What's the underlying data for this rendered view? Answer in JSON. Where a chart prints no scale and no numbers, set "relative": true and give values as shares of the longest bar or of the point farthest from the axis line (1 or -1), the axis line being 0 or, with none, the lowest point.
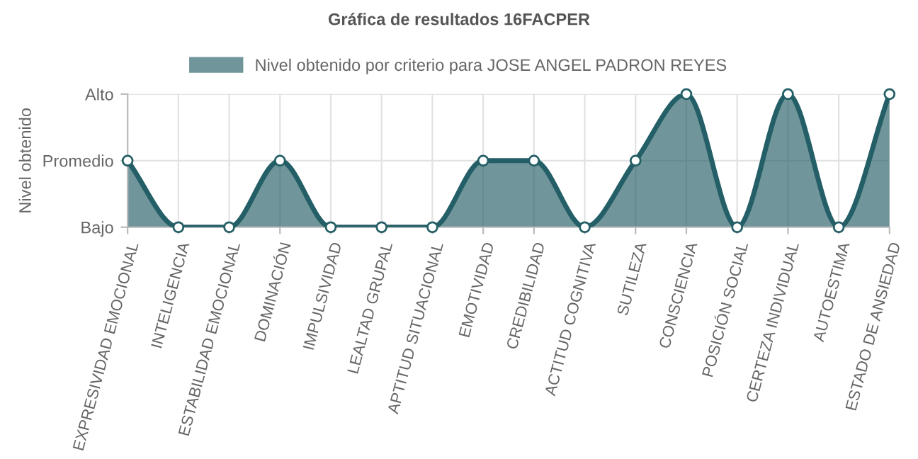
{
  "chart_data": {
    "type": "area",
    "title": "Gráfica de resultados 16FACPER",
    "ylabel": "Nivel obtenido",
    "categories": [
      "EXPRESIVIDAD EMOCIONAL",
      "INTELIGENCIA",
      "ESTABILIDAD EMOCIONAL",
      "DOMINACIÓN",
      "IMPULSIVIDAD",
      "LEALTAD GRUPAL",
      "APTITUD SITUACIONAL",
      "EMOTIVIDAD",
      "CREDIBILIDAD",
      "ACTITUD COGNITIVA",
      "SUTILEZA",
      "CONSCIENCIA",
      "POSICIÓN SOCIAL",
      "CERTEZA INDIVIDUAL",
      "AUTOESTIMA",
      "ESTADO DE ANSIEDAD"
    ],
    "series": [
      {
        "name": "Nivel obtenido por criterio para JOSE ANGEL PADRON REYES",
        "color": "#245e66",
        "values": [
          0.5,
          0,
          0,
          0.5,
          0,
          0,
          0,
          0.5,
          0.5,
          0,
          0.5,
          1,
          0,
          1,
          0,
          1
        ]
      }
    ],
    "relative": true,
    "y_categories": [
      "Alto",
      "Promedio",
      "Bajo"
    ],
    "grid": true,
    "legend": "top",
    "marker": "circle",
    "line_style": "solid"
  }
}
